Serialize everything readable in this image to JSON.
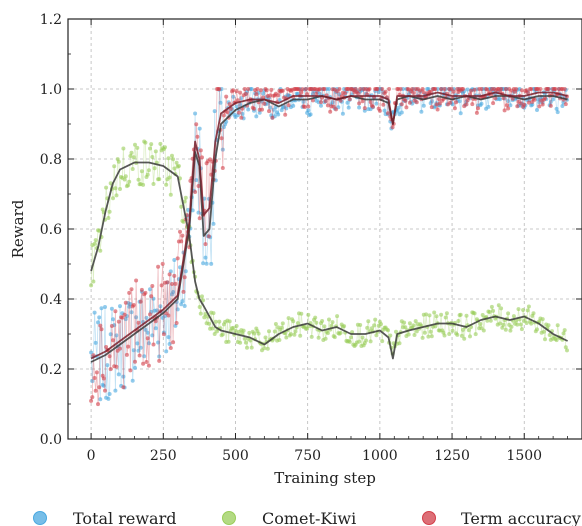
{
  "chart_data": {
    "type": "line",
    "title": "",
    "xlabel": "Training step",
    "ylabel": "Reward",
    "xlim": [
      -80,
      1700
    ],
    "ylim": [
      0.0,
      1.2
    ],
    "xticks": [
      0,
      250,
      500,
      750,
      1000,
      1250,
      1500
    ],
    "yticks": [
      0.0,
      0.2,
      0.4,
      0.6,
      0.8,
      1.0,
      1.2
    ],
    "xtick_labels": [
      "0",
      "250",
      "500",
      "750",
      "1000",
      "1250",
      "1500"
    ],
    "ytick_labels": [
      "0.0",
      "0.2",
      "0.4",
      "0.6",
      "0.8",
      "1.0",
      "1.2"
    ],
    "grid": true,
    "legend": {
      "placement": "bottom",
      "columns": 3
    },
    "smoothed_line_color": "#3a3a3a",
    "series": [
      {
        "name": "Total reward",
        "color": "#4aa8e0",
        "x": [
          0,
          50,
          100,
          150,
          200,
          250,
          300,
          340,
          360,
          375,
          390,
          410,
          430,
          450,
          500,
          550,
          600,
          650,
          700,
          750,
          800,
          850,
          900,
          950,
          1000,
          1030,
          1045,
          1060,
          1100,
          1150,
          1200,
          1250,
          1300,
          1350,
          1400,
          1450,
          1500,
          1550,
          1600,
          1650
        ],
        "y": [
          0.22,
          0.24,
          0.27,
          0.3,
          0.33,
          0.36,
          0.4,
          0.6,
          0.82,
          0.78,
          0.58,
          0.6,
          0.8,
          0.9,
          0.94,
          0.96,
          0.97,
          0.95,
          0.97,
          0.97,
          0.98,
          0.97,
          0.98,
          0.97,
          0.97,
          0.96,
          0.9,
          0.97,
          0.98,
          0.97,
          0.98,
          0.97,
          0.98,
          0.97,
          0.98,
          0.98,
          0.97,
          0.98,
          0.98,
          0.97
        ]
      },
      {
        "name": "Comet-Kiwi",
        "color": "#9acd5a",
        "x": [
          0,
          25,
          50,
          75,
          100,
          150,
          200,
          250,
          300,
          340,
          360,
          375,
          390,
          410,
          430,
          450,
          500,
          550,
          600,
          650,
          700,
          750,
          800,
          850,
          900,
          950,
          1000,
          1030,
          1045,
          1060,
          1100,
          1150,
          1200,
          1250,
          1300,
          1350,
          1400,
          1450,
          1500,
          1550,
          1600,
          1650
        ],
        "y": [
          0.48,
          0.55,
          0.65,
          0.73,
          0.77,
          0.79,
          0.79,
          0.78,
          0.75,
          0.58,
          0.45,
          0.4,
          0.38,
          0.35,
          0.32,
          0.31,
          0.3,
          0.29,
          0.27,
          0.3,
          0.32,
          0.33,
          0.31,
          0.32,
          0.3,
          0.3,
          0.31,
          0.29,
          0.23,
          0.3,
          0.31,
          0.32,
          0.33,
          0.33,
          0.32,
          0.34,
          0.35,
          0.34,
          0.35,
          0.33,
          0.3,
          0.28
        ]
      },
      {
        "name": "Term accuracy",
        "color": "#d23f4a",
        "x": [
          0,
          50,
          100,
          150,
          200,
          250,
          300,
          340,
          360,
          375,
          390,
          410,
          430,
          450,
          500,
          550,
          600,
          650,
          700,
          750,
          800,
          850,
          900,
          950,
          1000,
          1030,
          1045,
          1060,
          1100,
          1150,
          1200,
          1250,
          1300,
          1350,
          1400,
          1450,
          1500,
          1550,
          1600,
          1650
        ],
        "y": [
          0.23,
          0.25,
          0.28,
          0.31,
          0.34,
          0.37,
          0.41,
          0.62,
          0.85,
          0.8,
          0.64,
          0.66,
          0.85,
          0.93,
          0.96,
          0.97,
          0.97,
          0.96,
          0.98,
          0.98,
          0.98,
          0.97,
          0.98,
          0.98,
          0.98,
          0.97,
          0.9,
          0.98,
          0.98,
          0.98,
          0.99,
          0.98,
          0.98,
          0.98,
          0.99,
          0.98,
          0.98,
          0.99,
          0.99,
          0.98
        ]
      }
    ]
  }
}
